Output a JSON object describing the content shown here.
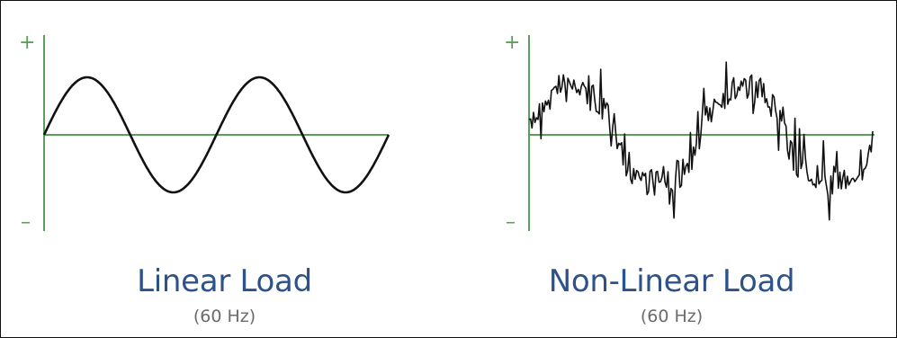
{
  "colors": {
    "axis": "#5b9f5b",
    "wave": "#111111",
    "title": "#2d5289",
    "subtitle": "#6b6b6b"
  },
  "axis_signs": {
    "plus": "+",
    "minus": "–"
  },
  "panels": [
    {
      "title": "Linear Load",
      "subtitle": "(60 Hz)",
      "waveform": "clean-sine",
      "cycles": 2
    },
    {
      "title": "Non-Linear Load",
      "subtitle": "(60 Hz)",
      "waveform": "distorted-sine",
      "cycles": 2
    }
  ]
}
